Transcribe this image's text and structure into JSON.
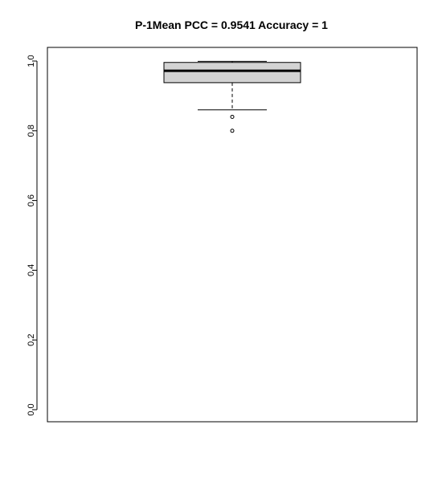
{
  "chart_data": {
    "type": "boxplot",
    "title": "P-1Mean PCC = 0.9541 Accuracy = 1",
    "xlabel": "",
    "ylabel": "",
    "ylim": [
      0,
      1
    ],
    "y_ticks": [
      "0.0",
      "0.2",
      "0.4",
      "0.6",
      "0.8",
      "1.0"
    ],
    "y_tick_values": [
      0.0,
      0.2,
      0.4,
      0.6,
      0.8,
      1.0
    ],
    "box": {
      "whisker_low": 0.86,
      "q1": 0.938,
      "median": 0.972,
      "q3": 0.996,
      "whisker_high": 0.999,
      "outliers": [
        0.84,
        0.8
      ]
    },
    "colors": {
      "box_fill": "#d3d3d3",
      "stroke": "#000000"
    },
    "grid": false,
    "legend": "none"
  }
}
